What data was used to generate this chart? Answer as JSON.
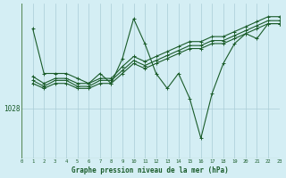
{
  "background_color": "#d4eef4",
  "grid_color": "#aaccd6",
  "line_color": "#1a5c2a",
  "title": "Graphe pression niveau de la mer (hPa)",
  "xlim": [
    0,
    23
  ],
  "ylim_bottom": 1023.0,
  "ylim_top": 1038.5,
  "ytick_val": 1028,
  "s1x": [
    1,
    2,
    3,
    4,
    5,
    6,
    7,
    8,
    9,
    10,
    11,
    12,
    13,
    14,
    15,
    16,
    17,
    18,
    19,
    20,
    21,
    22,
    23
  ],
  "s1y": [
    1036.0,
    1031.5,
    1031.5,
    1031.5,
    1031.0,
    1030.5,
    1031.5,
    1030.5,
    1033.0,
    1037.0,
    1034.5,
    1031.5,
    1030.0,
    1031.5,
    1029.0,
    1025.0,
    1029.5,
    1032.5,
    1034.5,
    1035.5,
    1035.0,
    1036.5,
    1036.5
  ],
  "s2x": [
    1,
    2,
    3,
    4,
    5,
    6,
    7,
    8,
    9,
    10,
    11,
    12,
    13,
    14,
    15,
    16,
    17,
    18,
    19,
    20,
    21,
    22,
    23
  ],
  "s2y": [
    1030.5,
    1030.0,
    1030.5,
    1030.5,
    1030.0,
    1030.0,
    1030.5,
    1030.5,
    1031.5,
    1032.5,
    1032.0,
    1032.5,
    1033.0,
    1033.5,
    1034.0,
    1034.0,
    1034.5,
    1034.5,
    1035.0,
    1035.5,
    1036.0,
    1036.5,
    1036.5
  ],
  "s3x": [
    1,
    2,
    3,
    4,
    5,
    6,
    7,
    8,
    9,
    10,
    11,
    12,
    13,
    14,
    15,
    16,
    17,
    18,
    19,
    20,
    21,
    22,
    23
  ],
  "s3y": [
    1030.8,
    1030.2,
    1030.8,
    1030.8,
    1030.2,
    1030.2,
    1030.8,
    1030.8,
    1031.8,
    1032.8,
    1032.3,
    1032.8,
    1033.3,
    1033.8,
    1034.3,
    1034.3,
    1034.8,
    1034.8,
    1035.3,
    1035.8,
    1036.3,
    1036.8,
    1036.8
  ],
  "s4x": [
    1,
    2,
    3,
    4,
    5,
    6,
    7,
    8,
    9,
    10,
    11,
    12,
    13,
    14,
    15,
    16,
    17,
    18,
    19,
    20,
    21,
    22,
    23
  ],
  "s4y": [
    1031.2,
    1030.5,
    1031.0,
    1031.0,
    1030.5,
    1030.5,
    1031.0,
    1031.0,
    1032.2,
    1033.2,
    1032.7,
    1033.2,
    1033.7,
    1034.2,
    1034.7,
    1034.7,
    1035.2,
    1035.2,
    1035.7,
    1036.2,
    1036.7,
    1037.2,
    1037.2
  ]
}
